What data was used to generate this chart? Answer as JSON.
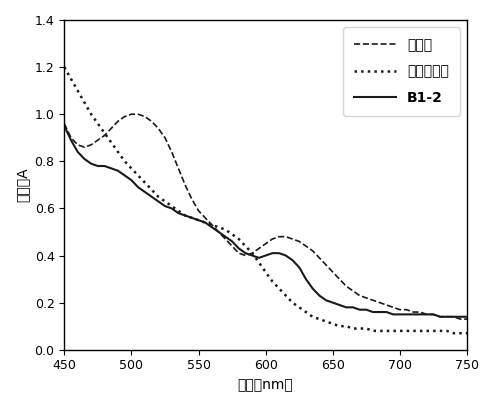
{
  "title": "",
  "xlabel": "波长（nm）",
  "ylabel": "吸光度A",
  "xlim": [
    450,
    750
  ],
  "ylim": [
    0,
    1.4
  ],
  "yticks": [
    0,
    0.2,
    0.4,
    0.6,
    0.8,
    1.0,
    1.2,
    1.4
  ],
  "xticks": [
    450,
    500,
    550,
    600,
    650,
    700,
    750
  ],
  "legend_labels": [
    "对照组",
    "亚硝酸盐组",
    "B1-2"
  ],
  "line_color": "#1a1a1a",
  "x_control": [
    450,
    455,
    460,
    465,
    470,
    475,
    480,
    485,
    490,
    495,
    500,
    505,
    510,
    515,
    520,
    525,
    530,
    535,
    540,
    545,
    550,
    555,
    560,
    565,
    570,
    575,
    580,
    585,
    590,
    595,
    600,
    605,
    610,
    615,
    620,
    625,
    630,
    635,
    640,
    645,
    650,
    655,
    660,
    665,
    670,
    675,
    680,
    685,
    690,
    695,
    700,
    705,
    710,
    715,
    720,
    725,
    730,
    735,
    740,
    745,
    750
  ],
  "y_control": [
    0.96,
    0.9,
    0.87,
    0.86,
    0.87,
    0.89,
    0.91,
    0.94,
    0.97,
    0.99,
    1.0,
    1.0,
    0.99,
    0.97,
    0.94,
    0.9,
    0.84,
    0.77,
    0.7,
    0.64,
    0.59,
    0.56,
    0.53,
    0.5,
    0.47,
    0.44,
    0.41,
    0.4,
    0.41,
    0.43,
    0.45,
    0.47,
    0.48,
    0.48,
    0.47,
    0.46,
    0.44,
    0.42,
    0.39,
    0.36,
    0.33,
    0.3,
    0.27,
    0.25,
    0.23,
    0.22,
    0.21,
    0.2,
    0.19,
    0.18,
    0.17,
    0.17,
    0.16,
    0.16,
    0.15,
    0.15,
    0.14,
    0.14,
    0.14,
    0.13,
    0.13
  ],
  "x_nitrite": [
    450,
    455,
    460,
    465,
    470,
    475,
    480,
    485,
    490,
    495,
    500,
    505,
    510,
    515,
    520,
    525,
    530,
    535,
    540,
    545,
    550,
    555,
    560,
    565,
    570,
    575,
    580,
    585,
    590,
    595,
    600,
    605,
    610,
    615,
    620,
    625,
    630,
    635,
    640,
    645,
    650,
    655,
    660,
    665,
    670,
    675,
    680,
    685,
    690,
    695,
    700,
    705,
    710,
    715,
    720,
    725,
    730,
    735,
    740,
    745,
    750
  ],
  "y_nitrite": [
    1.2,
    1.15,
    1.1,
    1.05,
    1.0,
    0.96,
    0.92,
    0.88,
    0.84,
    0.8,
    0.77,
    0.74,
    0.71,
    0.68,
    0.65,
    0.63,
    0.61,
    0.59,
    0.57,
    0.56,
    0.55,
    0.54,
    0.53,
    0.52,
    0.51,
    0.49,
    0.47,
    0.44,
    0.41,
    0.37,
    0.33,
    0.29,
    0.26,
    0.23,
    0.2,
    0.18,
    0.16,
    0.14,
    0.13,
    0.12,
    0.11,
    0.1,
    0.1,
    0.09,
    0.09,
    0.09,
    0.08,
    0.08,
    0.08,
    0.08,
    0.08,
    0.08,
    0.08,
    0.08,
    0.08,
    0.08,
    0.08,
    0.08,
    0.07,
    0.07,
    0.07
  ],
  "x_b12": [
    450,
    455,
    460,
    465,
    470,
    475,
    480,
    485,
    490,
    495,
    500,
    505,
    510,
    515,
    520,
    525,
    530,
    535,
    540,
    545,
    550,
    555,
    560,
    565,
    570,
    575,
    580,
    585,
    590,
    595,
    600,
    605,
    610,
    615,
    620,
    625,
    630,
    635,
    640,
    645,
    650,
    655,
    660,
    665,
    670,
    675,
    680,
    685,
    690,
    695,
    700,
    705,
    710,
    715,
    720,
    725,
    730,
    735,
    740,
    745,
    750
  ],
  "y_b12": [
    0.95,
    0.89,
    0.84,
    0.81,
    0.79,
    0.78,
    0.78,
    0.77,
    0.76,
    0.74,
    0.72,
    0.69,
    0.67,
    0.65,
    0.63,
    0.61,
    0.6,
    0.58,
    0.57,
    0.56,
    0.55,
    0.54,
    0.52,
    0.5,
    0.48,
    0.46,
    0.43,
    0.41,
    0.4,
    0.39,
    0.4,
    0.41,
    0.41,
    0.4,
    0.38,
    0.35,
    0.3,
    0.26,
    0.23,
    0.21,
    0.2,
    0.19,
    0.18,
    0.18,
    0.17,
    0.17,
    0.16,
    0.16,
    0.16,
    0.15,
    0.15,
    0.15,
    0.15,
    0.15,
    0.15,
    0.15,
    0.14,
    0.14,
    0.14,
    0.14,
    0.14
  ]
}
